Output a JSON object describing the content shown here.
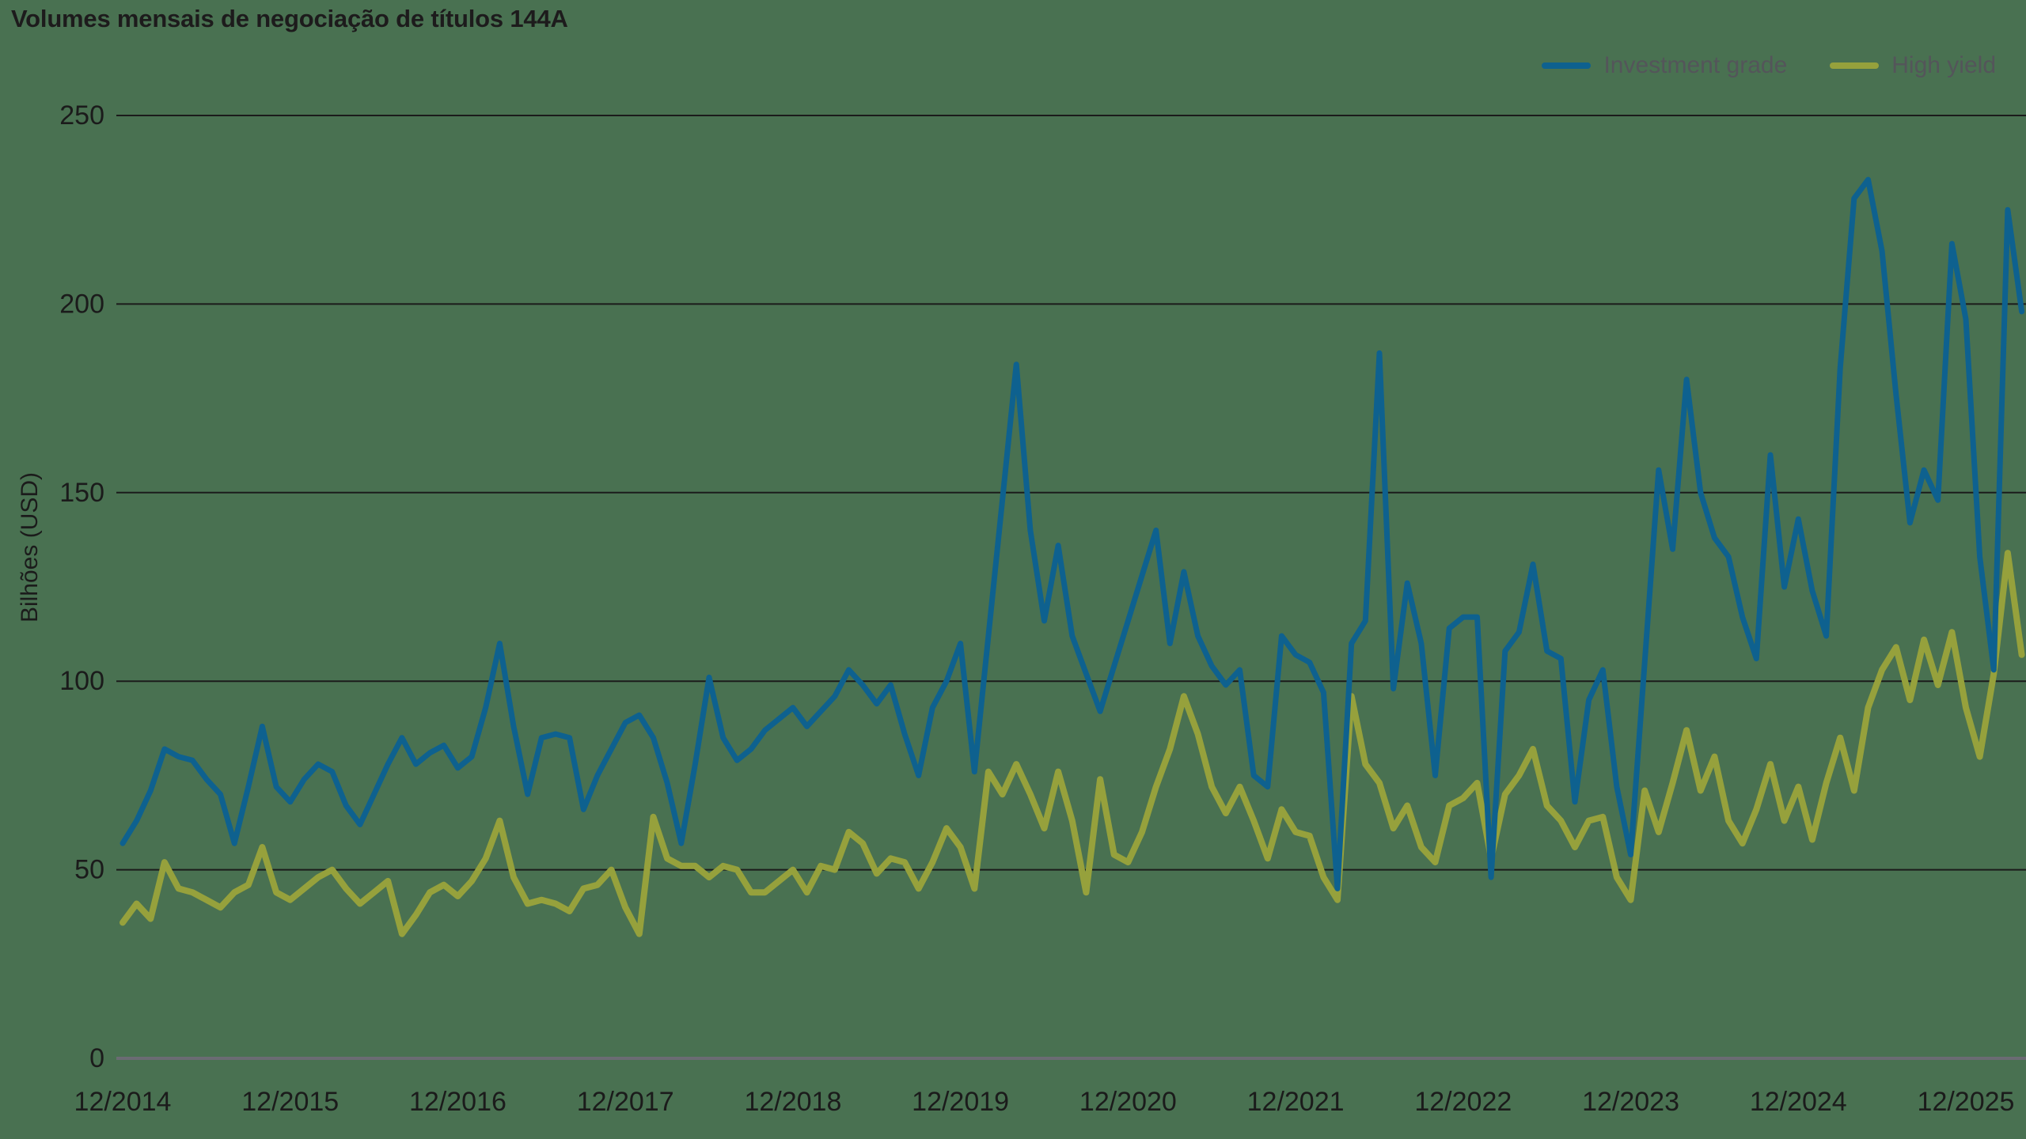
{
  "title": "Volumes mensais de negociação de títulos 144A",
  "legend": {
    "items": [
      {
        "label": "Investment grade",
        "color": "#0e618f"
      },
      {
        "label": "High yield",
        "color": "#96a13c"
      }
    ]
  },
  "colors": {
    "background": "#497151",
    "investment_grade": "#0e618f",
    "high_yield": "#96a13c",
    "gridline": "#1b1b1b",
    "zero_axis": "#6b6b73",
    "tick_text": "#1b1b1b",
    "legend_text": "#54555a",
    "title_text": "#1d1b1c"
  },
  "chart_data": {
    "type": "line",
    "title": "Volumes mensais de negociação de títulos 144A",
    "xlabel": "",
    "ylabel": "Bilhões (USD)",
    "ylim": [
      0,
      250
    ],
    "y_ticks": [
      0,
      50,
      100,
      150,
      200,
      250
    ],
    "grid": "horizontal",
    "legend_position": "top-right",
    "frequency": "monthly",
    "x_start": "12/2014",
    "x_end": "04/2026",
    "x_tick_labels": [
      "12/2014",
      "12/2015",
      "12/2016",
      "12/2017",
      "12/2018",
      "12/2019",
      "12/2020",
      "12/2021",
      "12/2022",
      "12/2023",
      "12/2024",
      "12/2025"
    ],
    "series": [
      {
        "name": "Investment grade",
        "color": "#0e618f",
        "values": [
          57,
          63,
          71,
          82,
          80,
          79,
          74,
          70,
          57,
          72,
          88,
          72,
          68,
          74,
          78,
          76,
          67,
          62,
          70,
          78,
          85,
          78,
          81,
          83,
          77,
          80,
          93,
          110,
          88,
          70,
          85,
          86,
          85,
          66,
          75,
          82,
          89,
          91,
          85,
          73,
          57,
          78,
          101,
          85,
          79,
          82,
          87,
          90,
          93,
          88,
          92,
          96,
          103,
          99,
          94,
          99,
          86,
          75,
          93,
          100,
          110,
          76,
          112,
          148,
          184,
          140,
          116,
          136,
          112,
          102,
          92,
          104,
          116,
          128,
          140,
          110,
          129,
          112,
          104,
          99,
          103,
          75,
          72,
          112,
          107,
          105,
          97,
          45,
          110,
          116,
          187,
          98,
          126,
          110,
          75,
          114,
          117,
          117,
          48,
          108,
          113,
          131,
          108,
          106,
          68,
          95,
          103,
          72,
          54,
          105,
          156,
          135,
          180,
          150,
          138,
          133,
          117,
          106,
          160,
          125,
          143,
          124,
          112,
          183,
          228,
          233,
          214,
          176,
          142,
          156,
          148,
          216,
          196,
          133,
          103,
          225,
          198
        ]
      },
      {
        "name": "High yield",
        "color": "#96a13c",
        "values": [
          36,
          41,
          37,
          52,
          45,
          44,
          42,
          40,
          44,
          46,
          56,
          44,
          42,
          45,
          48,
          50,
          45,
          41,
          44,
          47,
          33,
          38,
          44,
          46,
          43,
          47,
          53,
          63,
          48,
          41,
          42,
          41,
          39,
          45,
          46,
          50,
          40,
          33,
          64,
          53,
          51,
          51,
          48,
          51,
          50,
          44,
          44,
          47,
          50,
          44,
          51,
          50,
          60,
          57,
          49,
          53,
          52,
          45,
          52,
          61,
          56,
          45,
          76,
          70,
          78,
          70,
          61,
          76,
          63,
          44,
          74,
          54,
          52,
          60,
          72,
          82,
          96,
          86,
          72,
          65,
          72,
          63,
          53,
          66,
          60,
          59,
          48,
          42,
          96,
          78,
          73,
          61,
          67,
          56,
          52,
          67,
          69,
          73,
          53,
          70,
          75,
          82,
          67,
          63,
          56,
          63,
          64,
          48,
          42,
          71,
          60,
          73,
          87,
          71,
          80,
          63,
          57,
          66,
          78,
          63,
          72,
          58,
          73,
          85,
          71,
          93,
          103,
          109,
          95,
          111,
          99,
          113,
          93,
          80,
          102,
          134,
          107
        ]
      }
    ]
  }
}
